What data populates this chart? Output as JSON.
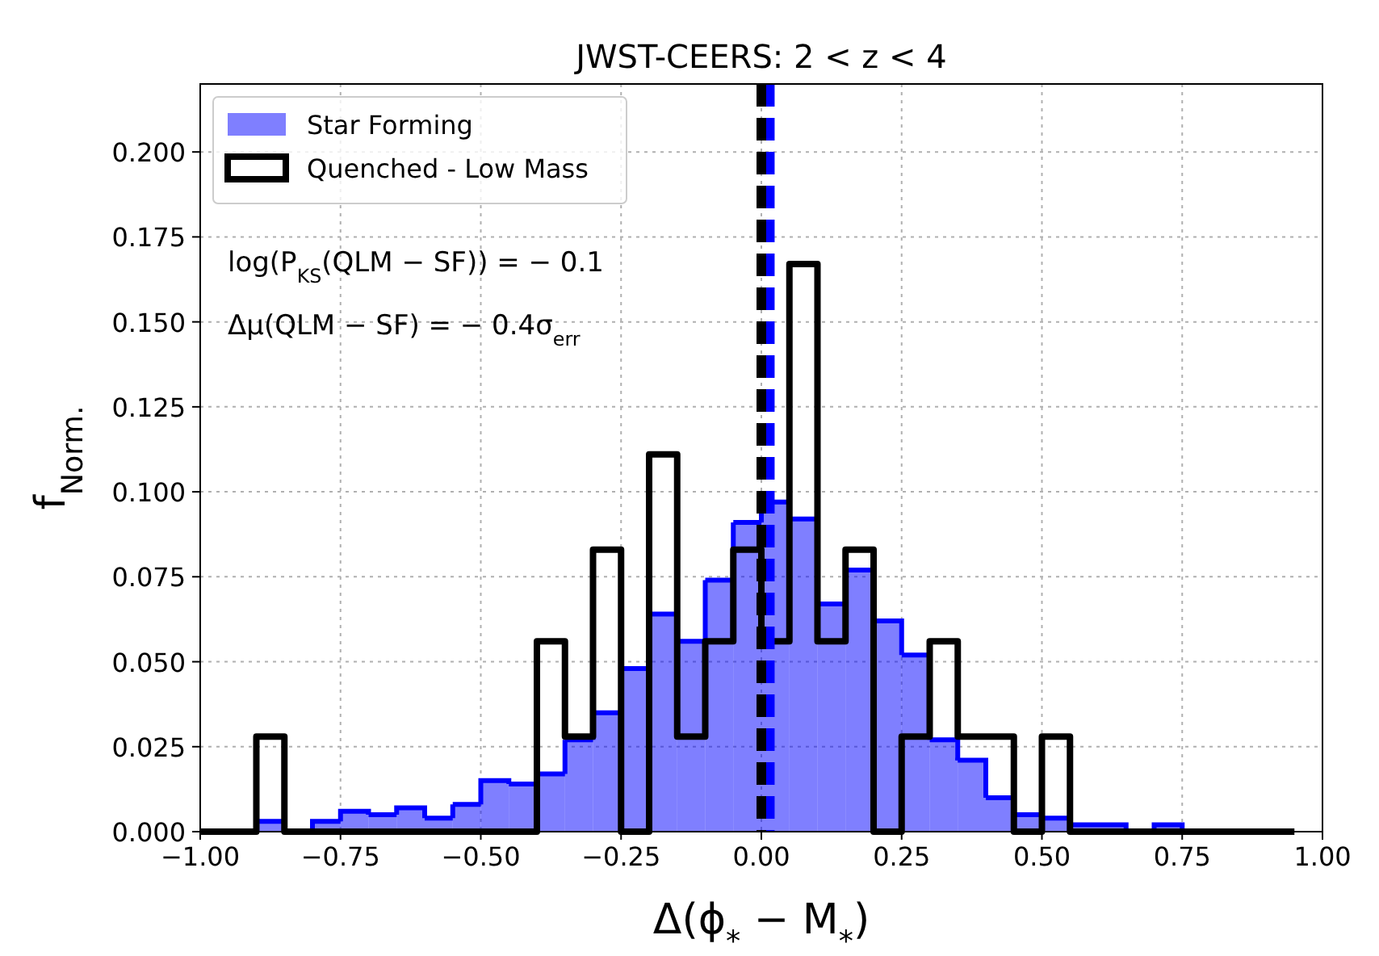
{
  "chart_data": {
    "type": "histogram",
    "title": "JWST-CEERS: 2 < z < 4",
    "xlabel": "Δ(ϕ$_{*}$ − M$_{*}$)",
    "ylabel": "f$_{Norm.}$",
    "series": [
      {
        "name": "Star Forming",
        "color": "#0000ff",
        "values": [
          null,
          null,
          0.003,
          0,
          0.003,
          0.006,
          0.005,
          0.007,
          0.004,
          0.008,
          0.015,
          0.014,
          0.017,
          0.027,
          0.035,
          0.048,
          0.064,
          0.056,
          0.074,
          0.091,
          0.097,
          0.092,
          0.067,
          0.077,
          0.062,
          0.052,
          0.027,
          0.021,
          0.01,
          0.005,
          0.004,
          0.002,
          0.002,
          0,
          0.002,
          null,
          null,
          null,
          null
        ]
      },
      {
        "name": "Quenched - Low Mass",
        "color": "#000000",
        "values": [
          0,
          0,
          0.028,
          0,
          0,
          0,
          0,
          0,
          0,
          0,
          0,
          0,
          0.056,
          0.028,
          0.083,
          0,
          0.111,
          0.028,
          0.056,
          0.083,
          0.056,
          0.167,
          0.056,
          0.083,
          0,
          0.028,
          0.056,
          0.028,
          0.028,
          0,
          0.028,
          0,
          0,
          0,
          0,
          0,
          0,
          0,
          0
        ]
      }
    ],
    "bins": [
      -1,
      -0.95,
      -0.9,
      -0.85,
      -0.8,
      -0.75,
      -0.7,
      -0.65,
      -0.6,
      -0.55,
      -0.5,
      -0.45,
      -0.4,
      -0.35,
      -0.3,
      -0.25,
      -0.2,
      -0.15,
      -0.1,
      -0.05,
      0,
      0.05,
      0.1,
      0.15,
      0.2,
      0.25,
      0.3,
      0.35,
      0.4,
      0.45,
      0.5,
      0.55,
      0.6,
      0.65,
      0.7,
      0.75,
      0.8,
      0.85,
      0.9,
      0.95
    ],
    "ref_lines": [
      {
        "axis": "x",
        "value": 0.015,
        "color": "#0000ff",
        "line_style": "dashed"
      },
      {
        "axis": "x",
        "value": 0,
        "color": "#000000",
        "line_style": "dashed"
      }
    ],
    "annotations": [
      "log(P$_{KS}$(QLM − SF)) = − 0.1",
      "Δμ(QLM − SF) = − 0.4σ$_{err}$"
    ],
    "xlim": [
      -1,
      1
    ],
    "ylim": [
      0,
      0.22
    ],
    "xticks": [
      {
        "value": -1,
        "label": "−1.00"
      },
      {
        "value": -0.75,
        "label": "−0.75"
      },
      {
        "value": -0.5,
        "label": "−0.50"
      },
      {
        "value": -0.25,
        "label": "−0.25"
      },
      {
        "value": 0,
        "label": "0.00"
      },
      {
        "value": 0.25,
        "label": "0.25"
      },
      {
        "value": 0.5,
        "label": "0.50"
      },
      {
        "value": 0.75,
        "label": "0.75"
      },
      {
        "value": 1,
        "label": "1.00"
      }
    ],
    "yticks": [
      {
        "value": 0,
        "label": "0.000"
      },
      {
        "value": 0.025,
        "label": "0.025"
      },
      {
        "value": 0.05,
        "label": "0.050"
      },
      {
        "value": 0.075,
        "label": "0.075"
      },
      {
        "value": 0.1,
        "label": "0.100"
      },
      {
        "value": 0.125,
        "label": "0.125"
      },
      {
        "value": 0.15,
        "label": "0.150"
      },
      {
        "value": 0.175,
        "label": "0.175"
      },
      {
        "value": 0.2,
        "label": "0.200"
      }
    ],
    "grid": true,
    "legend": "top left"
  }
}
